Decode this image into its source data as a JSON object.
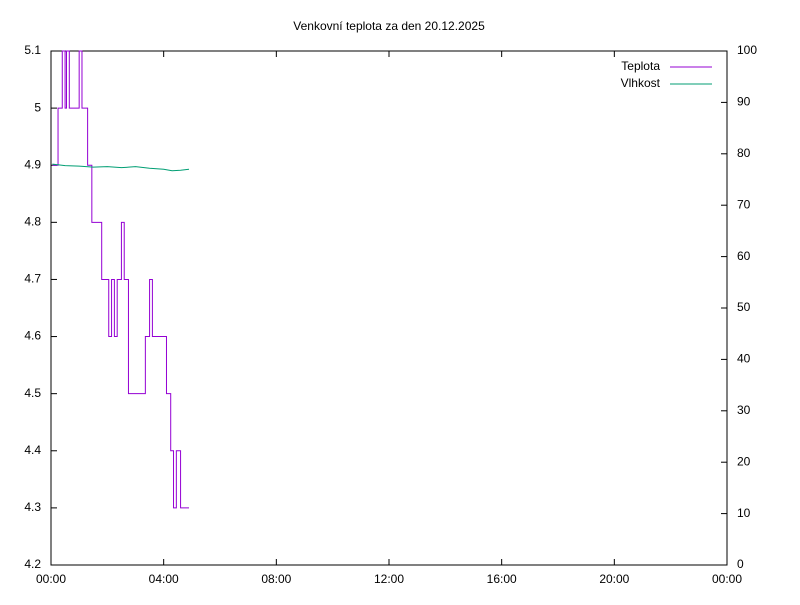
{
  "chart_data": {
    "type": "line",
    "title": "Venkovní teplota za den 20.12.2025",
    "xlim": [
      0,
      24
    ],
    "xticks": [
      {
        "value": 0,
        "label": "00:00"
      },
      {
        "value": 4,
        "label": "04:00"
      },
      {
        "value": 8,
        "label": "08:00"
      },
      {
        "value": 12,
        "label": "12:00"
      },
      {
        "value": 16,
        "label": "16:00"
      },
      {
        "value": 20,
        "label": "20:00"
      },
      {
        "value": 24,
        "label": "00:00"
      }
    ],
    "ylim": [
      4.2,
      5.1
    ],
    "yticks": [
      4.2,
      4.3,
      4.4,
      4.5,
      4.6,
      4.7,
      4.8,
      4.9,
      5,
      5.1
    ],
    "y2lim": [
      0,
      100
    ],
    "y2ticks": [
      0,
      10,
      20,
      30,
      40,
      50,
      60,
      70,
      80,
      90,
      100
    ],
    "grid": false,
    "legend": "top-right",
    "series": [
      {
        "name": "Teplota",
        "color": "#9400d3",
        "x": [
          0.05,
          0.25,
          0.25,
          0.4,
          0.4,
          0.5,
          0.5,
          0.55,
          0.55,
          0.65,
          0.65,
          1.0,
          1.0,
          1.1,
          1.1,
          1.3,
          1.3,
          1.45,
          1.45,
          1.8,
          1.8,
          2.05,
          2.05,
          2.15,
          2.15,
          2.25,
          2.25,
          2.35,
          2.35,
          2.5,
          2.5,
          2.6,
          2.6,
          2.75,
          2.75,
          3.35,
          3.35,
          3.5,
          3.5,
          3.6,
          3.6,
          4.1,
          4.1,
          4.25,
          4.25,
          4.35,
          4.35,
          4.45,
          4.45,
          4.6,
          4.6,
          4.9
        ],
        "values": [
          4.9,
          4.9,
          5.0,
          5.0,
          5.1,
          5.1,
          5.0,
          5.0,
          5.1,
          5.1,
          5.0,
          5.0,
          5.1,
          5.1,
          5.0,
          5.0,
          4.9,
          4.9,
          4.8,
          4.8,
          4.7,
          4.7,
          4.6,
          4.6,
          4.7,
          4.7,
          4.6,
          4.6,
          4.7,
          4.7,
          4.8,
          4.8,
          4.7,
          4.7,
          4.5,
          4.5,
          4.6,
          4.6,
          4.7,
          4.7,
          4.6,
          4.6,
          4.5,
          4.5,
          4.4,
          4.4,
          4.3,
          4.3,
          4.4,
          4.4,
          4.3,
          4.3
        ]
      },
      {
        "name": "Vlhkost",
        "color": "#009e73",
        "axis": "y2",
        "x": [
          0.05,
          0.5,
          1.0,
          1.5,
          2.0,
          2.5,
          3.0,
          3.5,
          4.0,
          4.3,
          4.6,
          4.9
        ],
        "values": [
          78,
          77.7,
          77.6,
          77.4,
          77.5,
          77.3,
          77.5,
          77.2,
          77.0,
          76.7,
          76.8,
          77.0
        ]
      }
    ]
  }
}
